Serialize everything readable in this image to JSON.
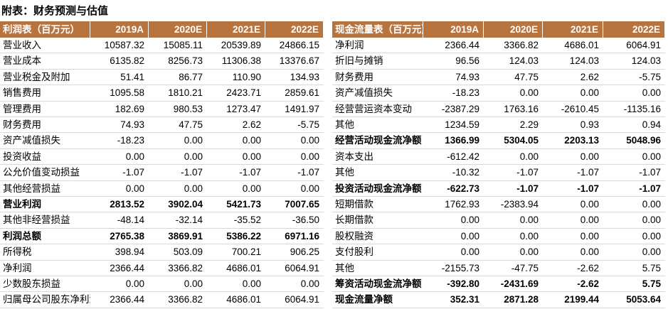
{
  "title": "附表：财务预测与估值",
  "tables": [
    {
      "header": [
        "利润表（百万元）",
        "2019A",
        "2020E",
        "2021E",
        "2022E"
      ],
      "rows": [
        [
          "营业收入",
          "10587.32",
          "15085.11",
          "20539.89",
          "24866.15"
        ],
        [
          "营业成本",
          "6135.82",
          "8256.73",
          "11306.38",
          "13376.67"
        ],
        [
          "营业税金及附加",
          "51.41",
          "86.77",
          "110.90",
          "134.93"
        ],
        [
          "销售费用",
          "1095.58",
          "1810.21",
          "2423.71",
          "2859.61"
        ],
        [
          "管理费用",
          "182.69",
          "980.53",
          "1273.47",
          "1491.97"
        ],
        [
          "财务费用",
          "74.93",
          "47.75",
          "2.62",
          "-5.75"
        ],
        [
          "资产减值损失",
          "-18.23",
          "0.00",
          "0.00",
          "0.00"
        ],
        [
          "投资收益",
          "0.00",
          "0.00",
          "0.00",
          "0.00"
        ],
        [
          "公允价值变动损益",
          "-1.07",
          "-1.07",
          "-1.07",
          "-1.07"
        ],
        [
          "其他经营损益",
          "0.00",
          "0.00",
          "0.00",
          "0.00"
        ],
        [
          "营业利润",
          "2813.52",
          "3902.04",
          "5421.73",
          "7007.65"
        ],
        [
          "其他非经营损益",
          "-48.14",
          "-32.14",
          "-35.52",
          "-36.50"
        ],
        [
          "利润总额",
          "2765.38",
          "3869.91",
          "5386.22",
          "6971.16"
        ],
        [
          "所得税",
          "398.94",
          "503.09",
          "700.21",
          "906.25"
        ],
        [
          "净利润",
          "2366.44",
          "3366.82",
          "4686.01",
          "6064.91"
        ],
        [
          "少数股东损益",
          "0.00",
          "0.00",
          "0.00",
          "0.00"
        ],
        [
          "归属母公司股东净利润",
          "2366.44",
          "3366.82",
          "4686.01",
          "6064.91"
        ]
      ]
    },
    {
      "header": [
        "现金流量表（百万元）",
        "2019A",
        "2020E",
        "2021E",
        "2022E"
      ],
      "rows": [
        [
          "净利润",
          "2366.44",
          "3366.82",
          "4686.01",
          "6064.91"
        ],
        [
          "折旧与摊销",
          "96.56",
          "124.03",
          "124.03",
          "124.03"
        ],
        [
          "财务费用",
          "74.93",
          "47.75",
          "2.62",
          "-5.75"
        ],
        [
          "资产减值损失",
          "-18.23",
          "0.00",
          "0.00",
          "0.00"
        ],
        [
          "经营营运资本变动",
          "-2387.29",
          "1763.16",
          "-2610.45",
          "-1135.16"
        ],
        [
          "其他",
          "1234.59",
          "2.29",
          "0.93",
          "0.94"
        ],
        [
          "经营活动现金流净额",
          "1366.99",
          "5304.05",
          "2203.13",
          "5048.96"
        ],
        [
          "资本支出",
          "-612.42",
          "0.00",
          "0.00",
          "0.00"
        ],
        [
          "其他",
          "-10.32",
          "-1.07",
          "-1.07",
          "-1.07"
        ],
        [
          "投资活动现金流净额",
          "-622.73",
          "-1.07",
          "-1.07",
          "-1.07"
        ],
        [
          "短期借款",
          "1762.93",
          "-2383.94",
          "0.00",
          "0.00"
        ],
        [
          "长期借款",
          "0.00",
          "0.00",
          "0.00",
          "0.00"
        ],
        [
          "股权融资",
          "0.00",
          "0.00",
          "0.00",
          "0.00"
        ],
        [
          "支付股利",
          "0.00",
          "0.00",
          "0.00",
          "0.00"
        ],
        [
          "其他",
          "-2155.73",
          "-47.75",
          "-2.62",
          "5.75"
        ],
        [
          "筹资活动现金流净额",
          "-392.80",
          "-2431.69",
          "-2.62",
          "5.75"
        ],
        [
          "现金流量净额",
          "352.31",
          "2871.28",
          "2199.44",
          "5053.64"
        ]
      ]
    }
  ]
}
